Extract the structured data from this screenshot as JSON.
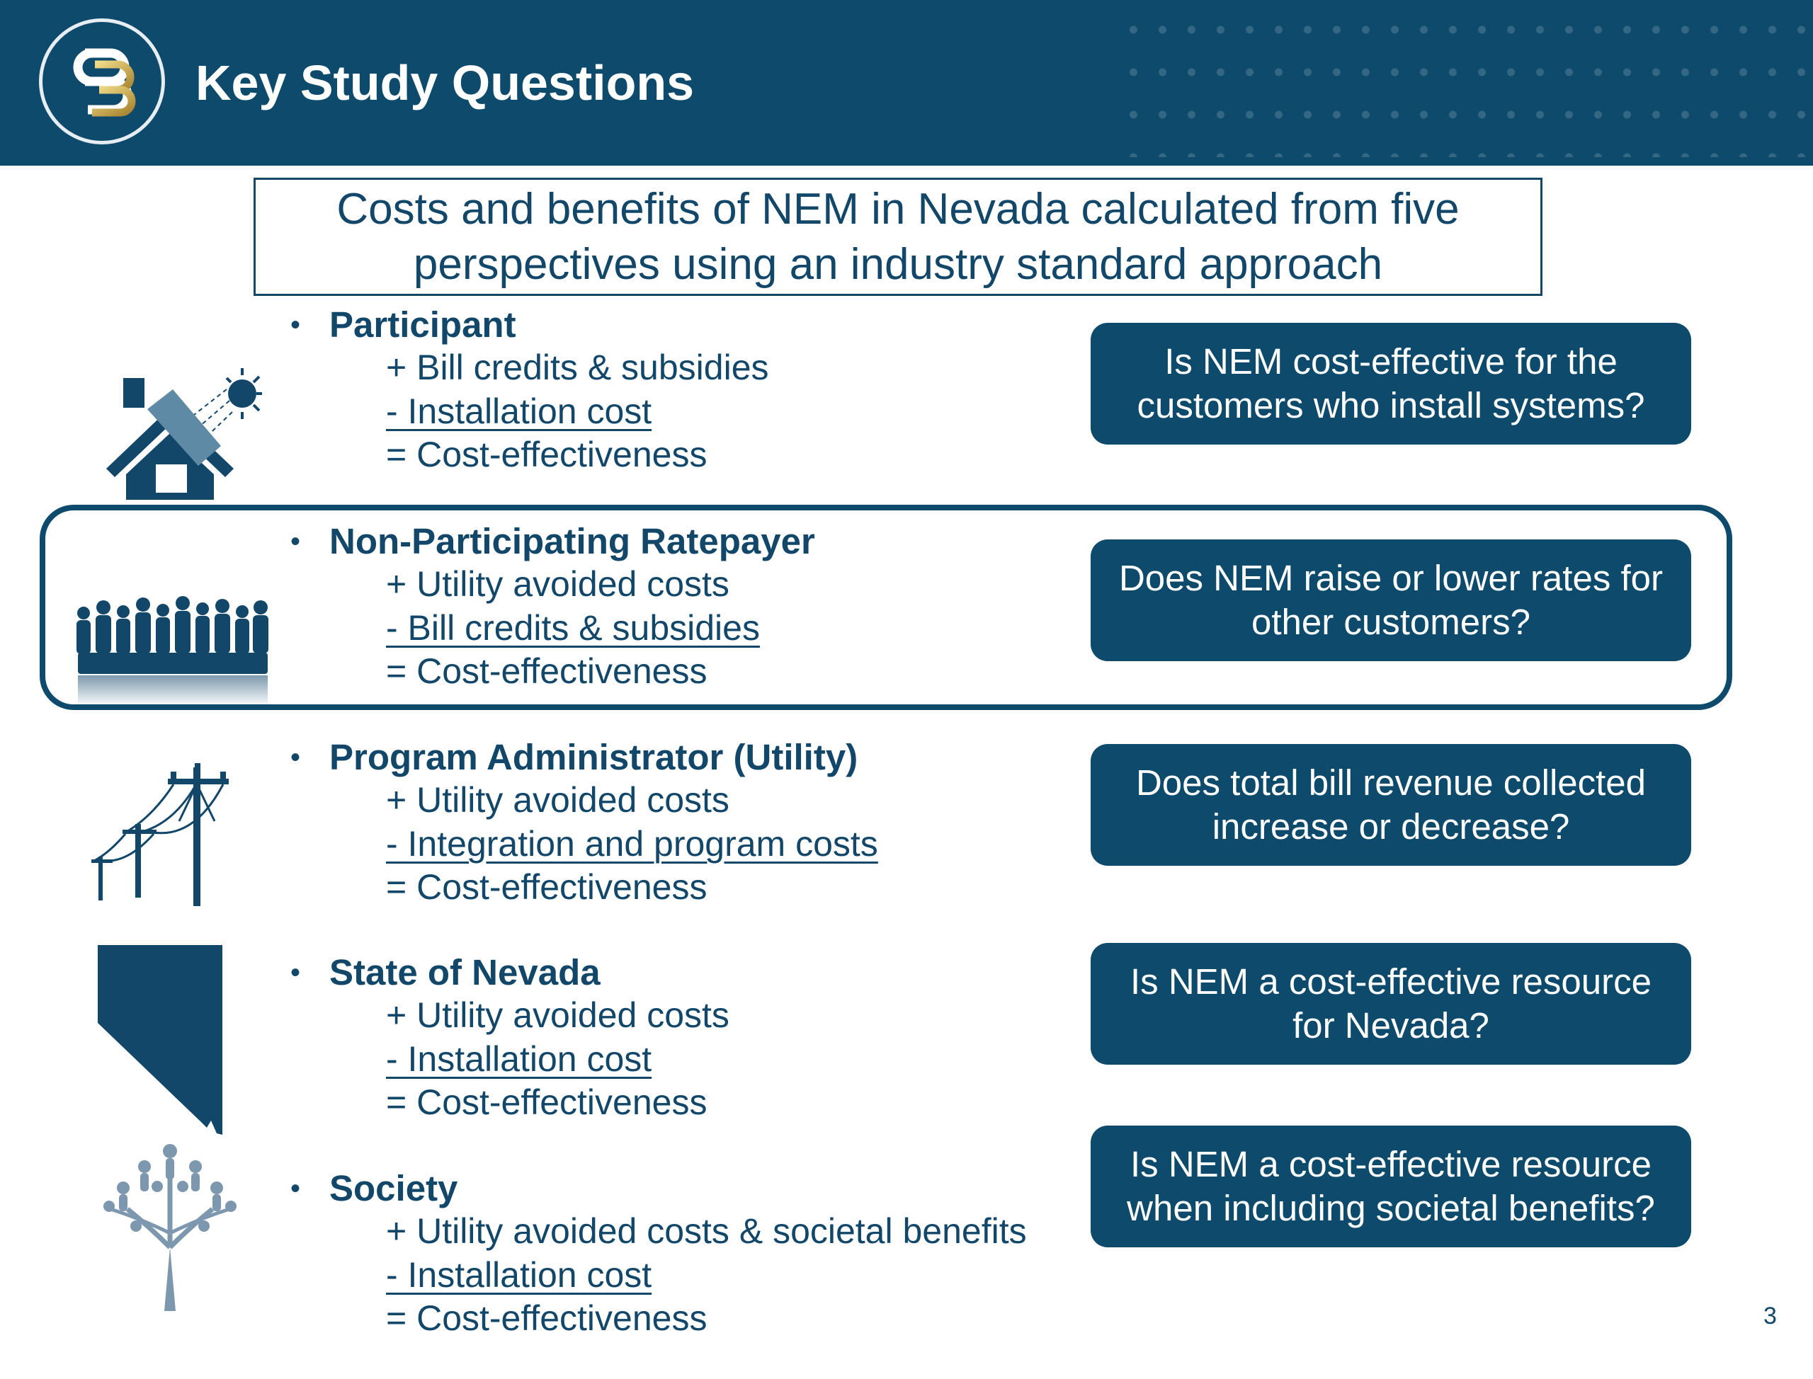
{
  "header": {
    "title": "Key Study Questions"
  },
  "subtitle": "Costs and benefits of NEM in Nevada calculated from five perspectives using an industry standard approach",
  "perspectives": [
    {
      "title": "Participant",
      "icon": "house-with-solar-panel-icon",
      "lines": [
        "+ Bill credits & subsidies",
        "-  Installation cost",
        "= Cost-effectiveness"
      ],
      "question": "Is NEM cost-effective for the customers who install systems?"
    },
    {
      "title": "Non-Participating Ratepayer",
      "icon": "people-group-icon",
      "lines": [
        "+ Utility avoided costs",
        "-  Bill credits & subsidies",
        "= Cost-effectiveness"
      ],
      "question": "Does NEM raise or lower rates for other customers?"
    },
    {
      "title": "Program Administrator (Utility)",
      "icon": "power-lines-icon",
      "lines": [
        "+ Utility avoided costs",
        "- Integration and program costs",
        "= Cost-effectiveness"
      ],
      "question": "Does total bill revenue collected increase or decrease?"
    },
    {
      "title": "State of Nevada",
      "icon": "nevada-map-icon",
      "lines": [
        "+ Utility avoided costs",
        "-  Installation cost",
        "= Cost-effectiveness"
      ],
      "question": "Is NEM a cost-effective resource for Nevada?"
    },
    {
      "title": "Society",
      "icon": "people-tree-icon",
      "lines": [
        "+ Utility avoided costs & societal benefits",
        "-  Installation cost",
        "= Cost-effectiveness"
      ],
      "question": "Is NEM a cost-effective resource when including societal benefits?"
    }
  ],
  "bullet": "•",
  "page_number": "3",
  "colors": {
    "header_bg": "#0d4a6b",
    "text": "#12476a",
    "logo_gold": "#c7a94c"
  }
}
